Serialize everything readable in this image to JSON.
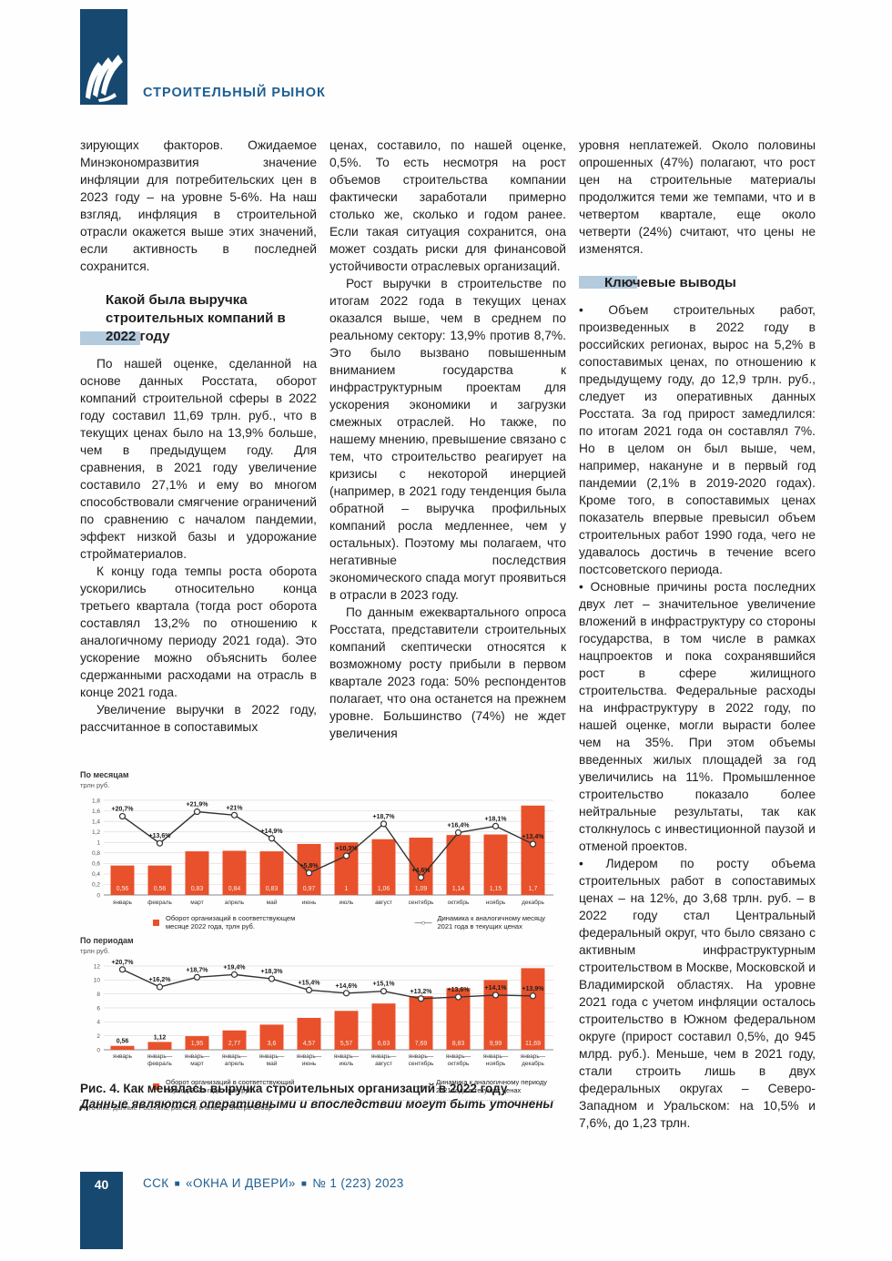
{
  "page": {
    "section_title": "СТРОИТЕЛЬНЫЙ РЫНОК",
    "page_number": "40",
    "footer_parts": [
      "ССК",
      "«ОКНА И ДВЕРИ»",
      "№ 1 (223) 2023"
    ]
  },
  "article": {
    "col1": {
      "p1": "зирующих факторов. Ожидаемое Минэкономразвития значение инфляции для потребительских цен в 2023 году – на уровне 5-6%. На наш взгляд, инфляция в строительной отрасли окажется выше этих значений, если активность в последней сохранится.",
      "heading": "Какой была выручка строительных компаний в 2022 году",
      "p2": "По нашей оценке, сделанной на основе данных Росстата, оборот компаний строительной сферы в 2022 году составил 11,69 трлн. руб., что в текущих ценах было на 13,9% больше, чем в предыдущем году. Для сравнения, в 2021 году увеличение составило 27,1% и ему во многом способствовали смягчение ограничений по сравнению с началом пандемии, эффект низкой базы и удорожание стройматериалов.",
      "p3": "К концу года темпы роста оборота ускорились относительно конца третьего квартала (тогда рост оборота составлял 13,2% по отношению к аналогичному периоду 2021 года). Это ускорение можно объяснить более сдержанными расходами на отрасль в конце 2021 года.",
      "p4": "Увеличение выручки в 2022 году, рассчитанное в сопоставимых"
    },
    "col2": {
      "p1": "ценах, составило, по нашей оценке, 0,5%. То есть несмотря на рост объемов строительства компании фактически заработали примерно столько же, сколько и годом ранее. Если такая ситуация сохранится, она может создать риски для финансовой устойчивости отраслевых организаций.",
      "p2": "Рост выручки в строительстве по итогам 2022 года в текущих ценах оказался выше, чем в среднем по реальному сектору: 13,9% против 8,7%. Это было вызвано повышенным вниманием государства к инфраструктурным проектам для ускорения экономики и загрузки смежных отраслей. Но также, по нашему мнению, превышение связано с тем, что строительство реагирует на кризисы с некоторой инерцией (например, в 2021 году тенденция была обратной – выручка профильных компаний росла медленнее, чем у остальных). Поэтому мы полагаем, что негативные последствия экономического спада могут проявиться в отрасли в 2023 году.",
      "p3": "По данным ежеквартального опроса Росстата, представители строительных компаний скептически относятся к возможному росту прибыли в первом квартале 2023 года: 50% респондентов полагает, что она останется на прежнем уровне. Большинство (74%) не ждет увеличения"
    },
    "col3": {
      "p1": "уровня неплатежей. Около половины опрошенных (47%) полагают, что рост цен на строительные материалы продолжится теми же темпами, что и в четвертом квартале, еще около четверти (24%) считают, что цены не изменятся.",
      "heading": "Ключевые выводы",
      "b1": "• Объем строительных работ, произведенных в 2022 году в российских регионах, вырос на 5,2% в сопоставимых ценах, по отношению к предыдущему году, до 12,9 трлн. руб., следует из оперативных данных Росстата. За год прирост замедлился: по итогам 2021 года он составлял 7%. Но в целом он был выше, чем, например, накануне и в первый год пандемии (2,1% в 2019-2020 годах). Кроме того, в сопоставимых ценах показатель впервые превысил объем строительных работ 1990 года, чего не удавалось достичь в течение всего постсоветского периода.",
      "b2": "• Основные причины роста последних двух лет – значительное увеличение вложений в инфраструктуру со стороны государства, в том числе в рамках нацпроектов и пока сохранявшийся рост в сфере жилищного строительства. Федеральные расходы на инфраструктуру в 2022 году, по нашей оценке, могли вырасти более чем на 35%. При этом объемы введенных жилых площадей за год увеличились на 11%. Промышленное строительство показало более нейтральные результаты, так как столкнулось с инвестиционной паузой и отменой проектов.",
      "b3": "• Лидером по росту объема строительных работ в сопоставимых ценах – на 12%, до 3,68 трлн. руб. – в 2022 году стал Центральный федеральный округ, что было связано с активным инфраструктурным строительством в Москве, Московской и Владимирской областях. На уровне 2021 года с учетом инфляции осталось строительство в Южном федеральном округе (прирост составил 0,5%, до 945 млрд. руб.). Меньше, чем в 2021 году, стали строить лишь в двух федеральных округах – Северо-Западном и Уральском: на 10,5% и 7,6%, до 1,23 трлн."
    }
  },
  "figure": {
    "source": "Источник: данные Росстата, расчеты и анализ Sherpa Group",
    "caption_title": "Рис. 4. Как менялась выручка строительных организаций в 2022 году",
    "caption_note": "Данные являются оперативными и впоследствии могут быть уточнены"
  },
  "colors": {
    "accent_orange": "#e8512b",
    "navy": "#17486f",
    "brand_blue": "#1e5e92",
    "heading_highlight": "#b3cbdd",
    "line_dark": "#333333"
  },
  "chart_data": [
    {
      "type": "bar+line",
      "title": "По месяцам",
      "unit": "трлн руб.",
      "ylim": [
        0,
        1.8
      ],
      "grid": true,
      "legend_position": "bottom",
      "ytick_values": [
        0,
        0.2,
        0.4,
        0.6,
        0.8,
        1,
        1.2,
        1.4,
        1.6,
        1.8
      ],
      "ytick_labels": [
        "0",
        "0,2",
        "0,4",
        "0,6",
        "0,8",
        "1",
        "1,2",
        "1,4",
        "1,6",
        "1,8"
      ],
      "line_axis_max_pct": 24.9,
      "categories": [
        [
          "январь"
        ],
        [
          "февраль"
        ],
        [
          "март"
        ],
        [
          "апрель"
        ],
        [
          "май"
        ],
        [
          "июнь"
        ],
        [
          "июль"
        ],
        [
          "август"
        ],
        [
          "сентябрь"
        ],
        [
          "октябрь"
        ],
        [
          "ноябрь"
        ],
        [
          "декабрь"
        ]
      ],
      "bars": {
        "name": "Оборот организаций в соответствующем месяце 2022 года, трлн руб.",
        "values": [
          0.56,
          0.56,
          0.83,
          0.84,
          0.83,
          0.97,
          1,
          1.06,
          1.09,
          1.14,
          1.15,
          1.7
        ],
        "labels": [
          "0,56",
          "0,56",
          "0,83",
          "0,84",
          "0,83",
          "0,97",
          "1",
          "1,06",
          "1,09",
          "1,14",
          "1,15",
          "1,7"
        ]
      },
      "line": {
        "name": "Динамика к аналогичному месяцу 2021 года в текущих ценах",
        "values_pct": [
          20.7,
          13.6,
          21.9,
          21,
          14.9,
          5.8,
          10.3,
          18.7,
          4.6,
          16.4,
          18.1,
          13.4
        ],
        "labels": [
          "+20,7%",
          "+13,6%",
          "+21,9%",
          "+21%",
          "+14,9%",
          "+5,8%",
          "+10,3%",
          "+18,7%",
          "+4,6%",
          "+16,4%",
          "+18,1%",
          "+13,4%"
        ]
      }
    },
    {
      "type": "bar+line",
      "title": "По периодам",
      "unit": "трлн руб.",
      "ylim": [
        0,
        12
      ],
      "grid": true,
      "legend_position": "bottom",
      "ytick_values": [
        0,
        2,
        4,
        6,
        8,
        10,
        12
      ],
      "ytick_labels": [
        "0",
        "2",
        "4",
        "6",
        "8",
        "10",
        "12"
      ],
      "line_axis_max_pct": 21.6,
      "categories": [
        [
          "январь"
        ],
        [
          "январь—",
          "февраль"
        ],
        [
          "январь—",
          "март"
        ],
        [
          "январь—",
          "апрель"
        ],
        [
          "январь—",
          "май"
        ],
        [
          "январь—",
          "июнь"
        ],
        [
          "январь—",
          "июль"
        ],
        [
          "январь—",
          "август"
        ],
        [
          "январь—",
          "сентябрь"
        ],
        [
          "январь—",
          "октябрь"
        ],
        [
          "январь—",
          "ноябрь"
        ],
        [
          "январь—",
          "декабрь"
        ]
      ],
      "bars": {
        "name": "Оборот организаций в соответствующий период 2022 года, трлн руб.",
        "values": [
          0.56,
          1.12,
          1.95,
          2.77,
          3.6,
          4.57,
          5.57,
          6.63,
          7.69,
          8.83,
          9.99,
          11.69
        ],
        "labels": [
          "0,56",
          "1,12",
          "1,95",
          "2,77",
          "3,6",
          "4,57",
          "5,57",
          "6,63",
          "7,69",
          "8,83",
          "9,99",
          "11,69"
        ]
      },
      "line": {
        "name": "Динамика к аналогичному периоду 2021 года в текущих ценах",
        "values_pct": [
          20.7,
          16.2,
          18.7,
          19.4,
          18.3,
          15.4,
          14.6,
          15.1,
          13.2,
          13.6,
          14.1,
          13.9
        ],
        "labels": [
          "+20,7%",
          "+16,2%",
          "+18,7%",
          "+19,4%",
          "+18,3%",
          "+15,4%",
          "+14,6%",
          "+15,1%",
          "+13,2%",
          "+13,6%",
          "+14,1%",
          "+13,9%"
        ]
      }
    }
  ]
}
